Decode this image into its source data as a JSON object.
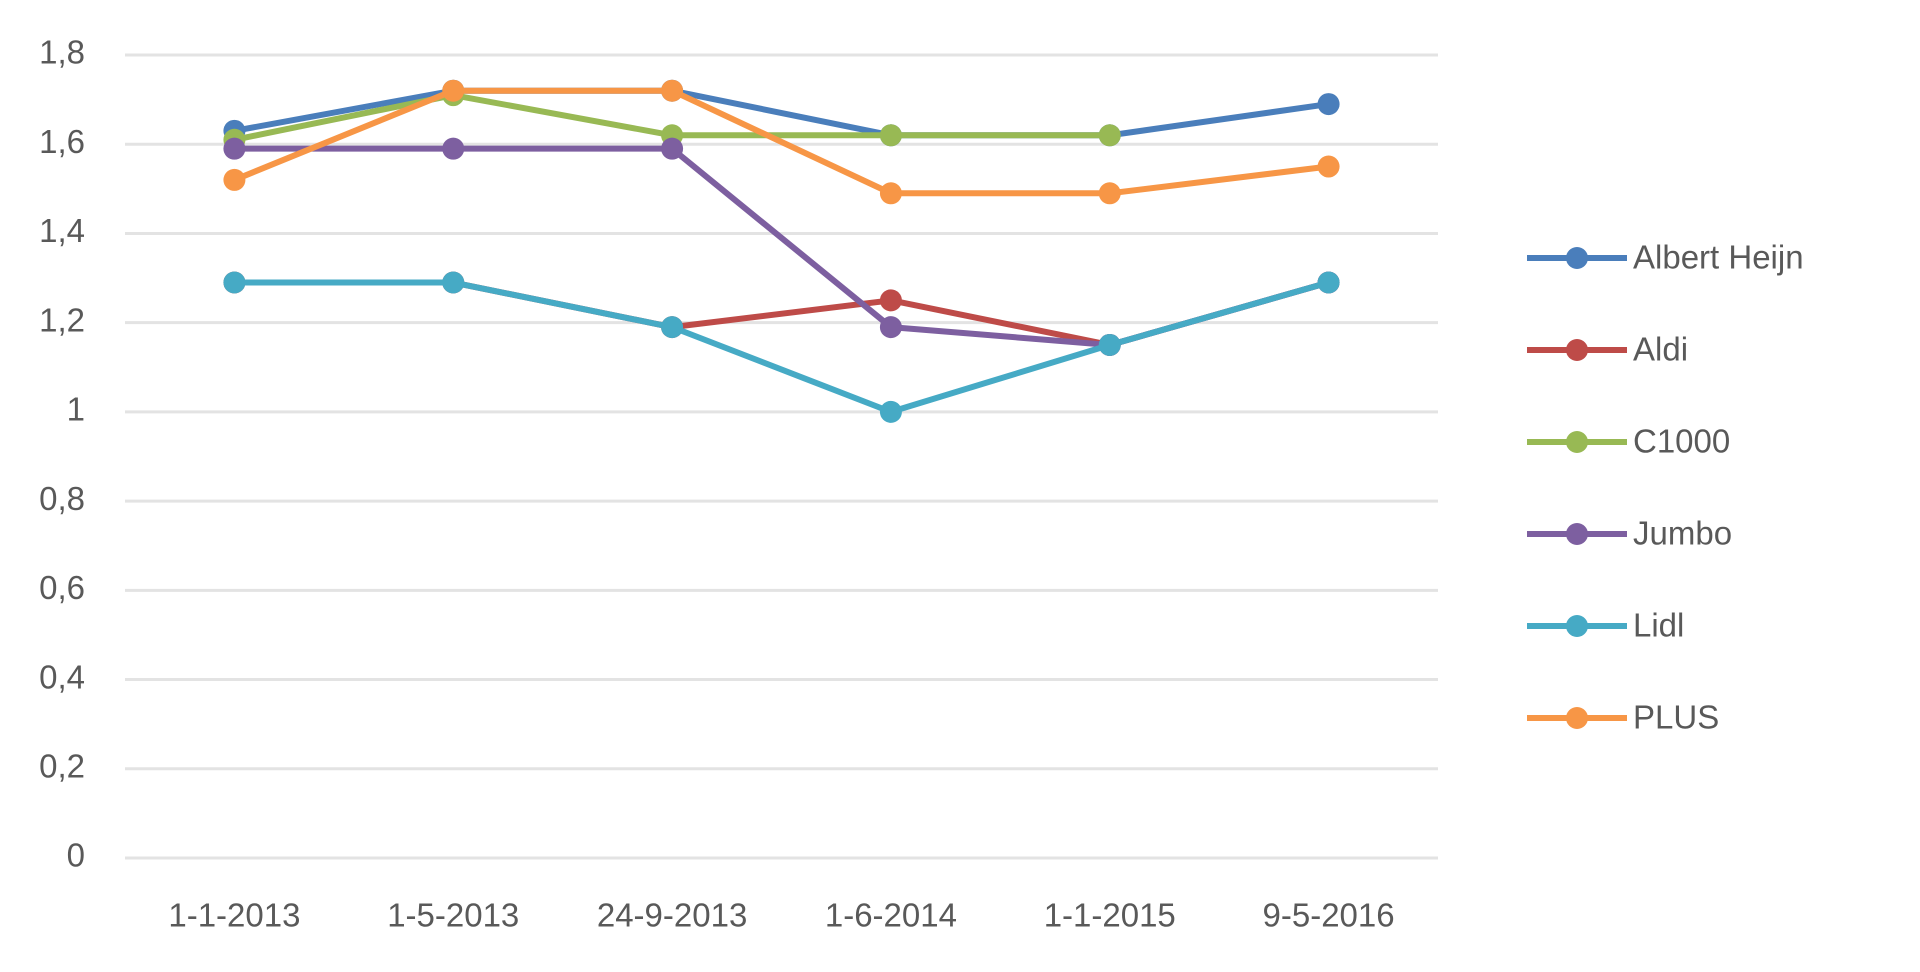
{
  "chart_data": {
    "type": "line",
    "categories": [
      "1-1-2013",
      "1-5-2013",
      "24-9-2013",
      "1-6-2014",
      "1-1-2015",
      "9-5-2016"
    ],
    "series": [
      {
        "name": "Albert Heijn",
        "color": "#4a7ebb",
        "values": [
          1.63,
          1.72,
          1.72,
          1.62,
          1.62,
          1.69
        ]
      },
      {
        "name": "Aldi",
        "color": "#be4b48",
        "values": [
          1.29,
          1.29,
          1.19,
          1.25,
          1.15,
          1.29
        ]
      },
      {
        "name": "C1000",
        "color": "#98b954",
        "values": [
          1.61,
          1.71,
          1.62,
          1.62,
          1.62,
          null
        ]
      },
      {
        "name": "Jumbo",
        "color": "#7d5fa0",
        "values": [
          1.59,
          1.59,
          1.59,
          1.19,
          1.15,
          1.29
        ]
      },
      {
        "name": "Lidl",
        "color": "#46aac5",
        "values": [
          1.29,
          1.29,
          1.19,
          1.0,
          1.15,
          1.29
        ]
      },
      {
        "name": "PLUS",
        "color": "#f79646",
        "values": [
          1.52,
          1.72,
          1.72,
          1.49,
          1.49,
          1.55
        ]
      }
    ],
    "ylim": [
      0,
      1.8
    ],
    "yticks": [
      0,
      {
        "value": 0.2,
        "label": "0,2"
      },
      {
        "value": 0.4,
        "label": "0,4"
      },
      {
        "value": 0.6,
        "label": "0,6"
      },
      {
        "value": 0.8,
        "label": "0,8"
      },
      1,
      {
        "value": 1.2,
        "label": "1,2"
      },
      {
        "value": 1.4,
        "label": "1,4"
      },
      {
        "value": 1.6,
        "label": "1,6"
      },
      {
        "value": 1.8,
        "label": "1,8"
      }
    ],
    "grid": true,
    "legend": "right"
  }
}
